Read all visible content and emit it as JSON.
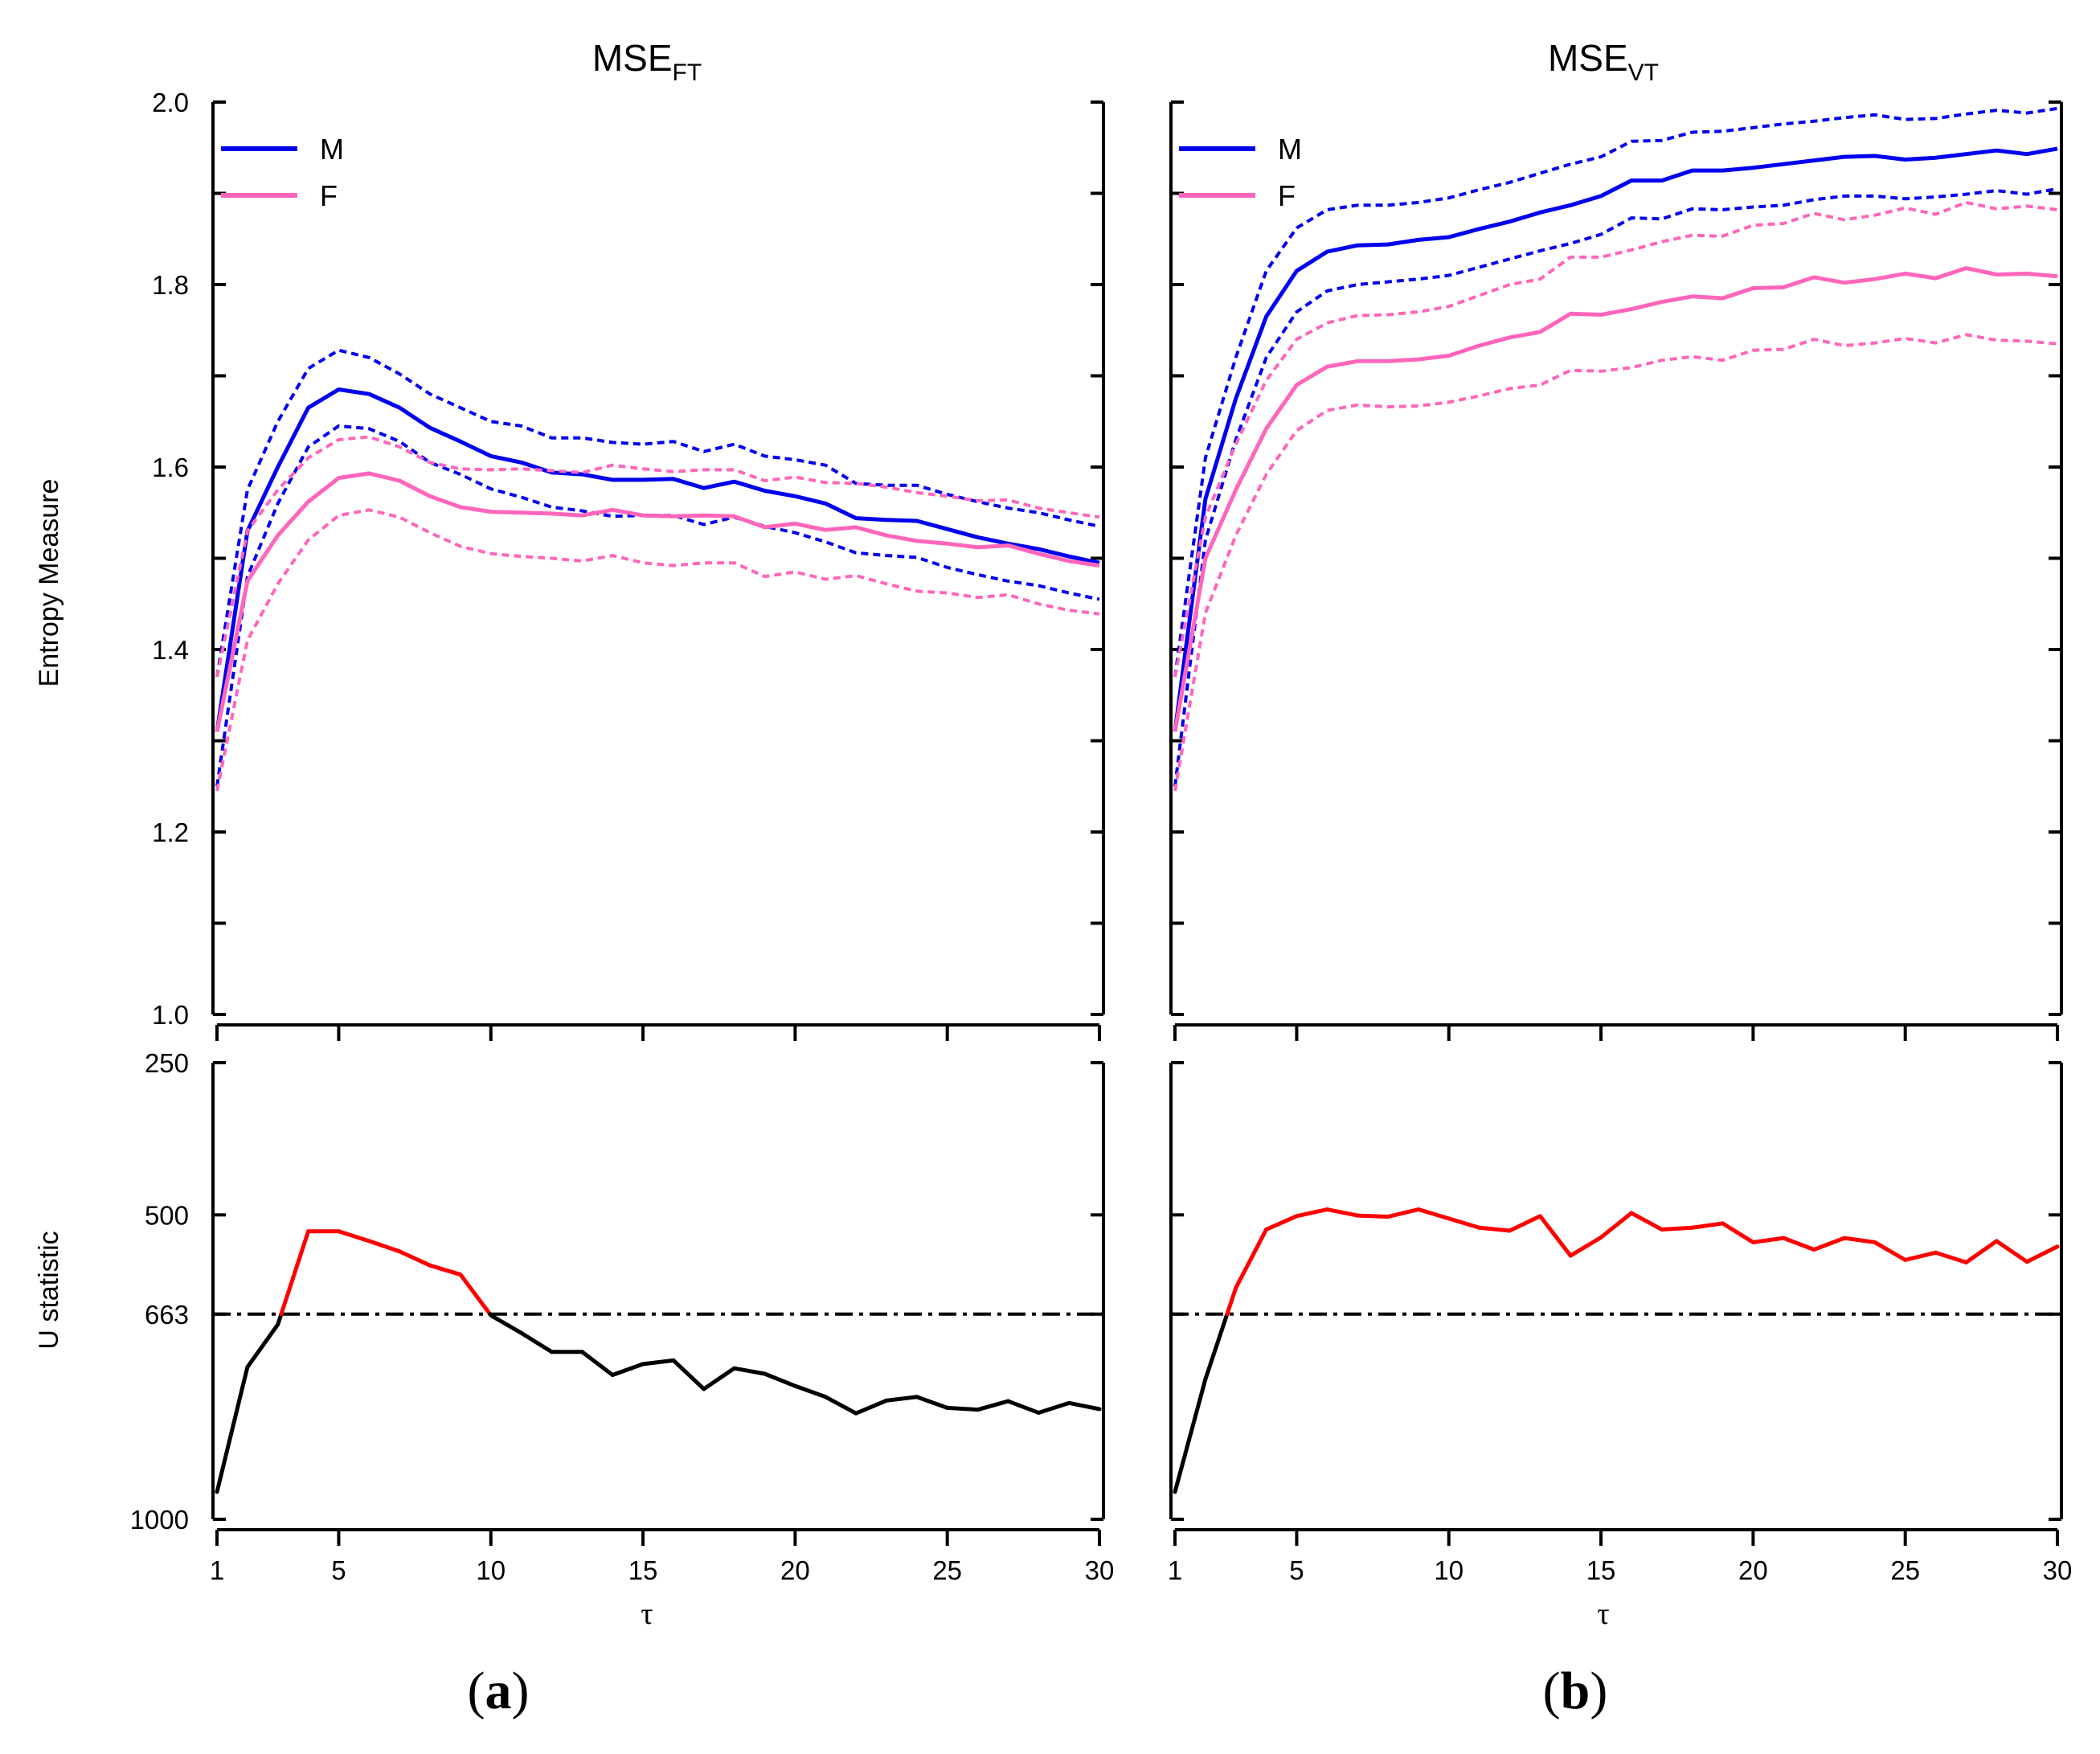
{
  "x_axis": {
    "label": "τ",
    "ticks": [
      1,
      5,
      10,
      15,
      20,
      25,
      30
    ]
  },
  "chart_data": [
    {
      "type": "line",
      "panel": "a",
      "panel_label": "a",
      "title_main": "MSE",
      "title_sub": "FT",
      "ylabel": "Entropy Measure",
      "ylim": [
        1.0,
        2.0
      ],
      "yticks": [
        1.0,
        1.2,
        1.4,
        1.6,
        1.8,
        2.0
      ],
      "legend": [
        {
          "name": "M",
          "color": "#0000ee"
        },
        {
          "name": "F",
          "color": "#ff66bb"
        }
      ],
      "legend_position": "top-left",
      "x": [
        1,
        2,
        3,
        4,
        5,
        6,
        7,
        8,
        9,
        10,
        11,
        12,
        13,
        14,
        15,
        16,
        17,
        18,
        19,
        20,
        21,
        22,
        23,
        24,
        25,
        26,
        27,
        28,
        29,
        30
      ],
      "series": [
        {
          "name": "M",
          "style": "solid",
          "color": "#0000ee",
          "values": [
            1.31,
            1.53,
            1.6,
            1.665,
            1.685,
            1.68,
            1.665,
            1.643,
            1.628,
            1.612,
            1.605,
            1.594,
            1.592,
            1.586,
            1.586,
            1.587,
            1.577,
            1.584,
            1.574,
            1.568,
            1.56,
            1.544,
            1.542,
            1.541,
            1.532,
            1.523,
            1.516,
            1.51,
            1.502,
            1.495
          ]
        },
        {
          "series_of": "M",
          "style": "dashed",
          "color": "#0000ee",
          "values": [
            1.37,
            1.575,
            1.65,
            1.708,
            1.728,
            1.72,
            1.702,
            1.68,
            1.665,
            1.65,
            1.645,
            1.632,
            1.632,
            1.627,
            1.625,
            1.628,
            1.617,
            1.625,
            1.612,
            1.608,
            1.602,
            1.582,
            1.58,
            1.58,
            1.57,
            1.562,
            1.555,
            1.55,
            1.542,
            1.535
          ]
        },
        {
          "series_of": "M",
          "style": "dashed",
          "color": "#0000ee",
          "values": [
            1.25,
            1.48,
            1.56,
            1.622,
            1.645,
            1.642,
            1.628,
            1.605,
            1.592,
            1.576,
            1.567,
            1.556,
            1.552,
            1.546,
            1.547,
            1.547,
            1.537,
            1.545,
            1.535,
            1.528,
            1.518,
            1.506,
            1.503,
            1.501,
            1.49,
            1.482,
            1.475,
            1.47,
            1.462,
            1.455
          ]
        },
        {
          "name": "F",
          "style": "solid",
          "color": "#ff66bb",
          "values": [
            1.31,
            1.475,
            1.525,
            1.562,
            1.588,
            1.593,
            1.585,
            1.568,
            1.556,
            1.551,
            1.55,
            1.549,
            1.547,
            1.553,
            1.547,
            1.546,
            1.547,
            1.546,
            1.534,
            1.538,
            1.531,
            1.534,
            1.525,
            1.519,
            1.516,
            1.512,
            1.514,
            1.505,
            1.497,
            1.492
          ]
        },
        {
          "series_of": "F",
          "style": "dashed",
          "color": "#ff66bb",
          "values": [
            1.37,
            1.53,
            1.575,
            1.61,
            1.63,
            1.633,
            1.622,
            1.605,
            1.598,
            1.597,
            1.598,
            1.596,
            1.594,
            1.602,
            1.598,
            1.595,
            1.597,
            1.597,
            1.585,
            1.589,
            1.583,
            1.582,
            1.578,
            1.572,
            1.568,
            1.563,
            1.564,
            1.555,
            1.55,
            1.545
          ]
        },
        {
          "series_of": "F",
          "style": "dashed",
          "color": "#ff66bb",
          "values": [
            1.245,
            1.41,
            1.472,
            1.52,
            1.547,
            1.553,
            1.545,
            1.528,
            1.513,
            1.505,
            1.502,
            1.5,
            1.497,
            1.503,
            1.495,
            1.492,
            1.495,
            1.495,
            1.48,
            1.485,
            1.477,
            1.481,
            1.472,
            1.464,
            1.462,
            1.457,
            1.46,
            1.45,
            1.443,
            1.439
          ]
        }
      ]
    },
    {
      "type": "line",
      "panel": "a",
      "ylabel": "U statistic",
      "ylim": [
        1000,
        250
      ],
      "yticks": [
        250,
        500,
        663,
        1000
      ],
      "threshold": 663,
      "threshold_style": "dash-dot",
      "significant_color": "#ff0000",
      "nonsignificant_color": "#000000",
      "x": [
        1,
        2,
        3,
        4,
        5,
        6,
        7,
        8,
        9,
        10,
        11,
        12,
        13,
        14,
        15,
        16,
        17,
        18,
        19,
        20,
        21,
        22,
        23,
        24,
        25,
        26,
        27,
        28,
        29,
        30
      ],
      "values": [
        955,
        750,
        680,
        527,
        527,
        543,
        560,
        583,
        598,
        665,
        694,
        725,
        725,
        763,
        745,
        739,
        786,
        752,
        761,
        781,
        799,
        826,
        805,
        799,
        817,
        820,
        806,
        825,
        809,
        819
      ]
    },
    {
      "type": "line",
      "panel": "b",
      "panel_label": "b",
      "title_main": "MSE",
      "title_sub": "VT",
      "ylabel": "",
      "ylim": [
        1.0,
        2.0
      ],
      "yticks": [
        1.0,
        1.2,
        1.4,
        1.6,
        1.8,
        2.0
      ],
      "legend": [
        {
          "name": "M",
          "color": "#0000ee"
        },
        {
          "name": "F",
          "color": "#ff66bb"
        }
      ],
      "legend_position": "top-left",
      "x": [
        1,
        2,
        3,
        4,
        5,
        6,
        7,
        8,
        9,
        10,
        11,
        12,
        13,
        14,
        15,
        16,
        17,
        18,
        19,
        20,
        21,
        22,
        23,
        24,
        25,
        26,
        27,
        28,
        29,
        30
      ],
      "series": [
        {
          "name": "M",
          "style": "solid",
          "color": "#0000ee",
          "values": [
            1.31,
            1.565,
            1.675,
            1.765,
            1.815,
            1.836,
            1.843,
            1.844,
            1.849,
            1.852,
            1.861,
            1.869,
            1.879,
            1.887,
            1.897,
            1.914,
            1.914,
            1.925,
            1.925,
            1.928,
            1.932,
            1.936,
            1.94,
            1.941,
            1.937,
            1.939,
            1.943,
            1.947,
            1.943,
            1.949
          ]
        },
        {
          "series_of": "M",
          "style": "dashed",
          "color": "#0000ee",
          "values": [
            1.37,
            1.61,
            1.72,
            1.815,
            1.862,
            1.882,
            1.887,
            1.887,
            1.89,
            1.895,
            1.904,
            1.912,
            1.922,
            1.932,
            1.94,
            1.957,
            1.958,
            1.967,
            1.968,
            1.972,
            1.976,
            1.979,
            1.983,
            1.986,
            1.981,
            1.982,
            1.987,
            1.991,
            1.988,
            1.993
          ]
        },
        {
          "series_of": "M",
          "style": "dashed",
          "color": "#0000ee",
          "values": [
            1.25,
            1.52,
            1.63,
            1.72,
            1.77,
            1.793,
            1.8,
            1.803,
            1.806,
            1.81,
            1.819,
            1.828,
            1.837,
            1.845,
            1.855,
            1.873,
            1.872,
            1.883,
            1.882,
            1.885,
            1.887,
            1.893,
            1.897,
            1.897,
            1.894,
            1.896,
            1.899,
            1.903,
            1.899,
            1.905
          ]
        },
        {
          "name": "F",
          "style": "solid",
          "color": "#ff66bb",
          "values": [
            1.31,
            1.5,
            1.575,
            1.642,
            1.69,
            1.71,
            1.716,
            1.716,
            1.718,
            1.722,
            1.733,
            1.742,
            1.748,
            1.768,
            1.767,
            1.773,
            1.781,
            1.787,
            1.785,
            1.796,
            1.797,
            1.808,
            1.802,
            1.806,
            1.812,
            1.807,
            1.818,
            1.811,
            1.812,
            1.809
          ]
        },
        {
          "series_of": "F",
          "style": "dashed",
          "color": "#ff66bb",
          "values": [
            1.37,
            1.545,
            1.625,
            1.695,
            1.74,
            1.758,
            1.766,
            1.767,
            1.77,
            1.776,
            1.788,
            1.8,
            1.806,
            1.83,
            1.83,
            1.838,
            1.847,
            1.854,
            1.853,
            1.865,
            1.867,
            1.878,
            1.871,
            1.876,
            1.884,
            1.877,
            1.89,
            1.883,
            1.886,
            1.882
          ]
        },
        {
          "series_of": "F",
          "style": "dashed",
          "color": "#ff66bb",
          "values": [
            1.245,
            1.44,
            1.525,
            1.592,
            1.64,
            1.662,
            1.668,
            1.666,
            1.667,
            1.671,
            1.678,
            1.686,
            1.69,
            1.706,
            1.705,
            1.709,
            1.717,
            1.721,
            1.717,
            1.728,
            1.729,
            1.74,
            1.733,
            1.736,
            1.741,
            1.736,
            1.745,
            1.739,
            1.738,
            1.735
          ]
        }
      ]
    },
    {
      "type": "line",
      "panel": "b",
      "ylabel": "",
      "ylim": [
        1000,
        250
      ],
      "yticks": [
        250,
        500,
        663,
        1000
      ],
      "threshold": 663,
      "threshold_style": "dash-dot",
      "significant_color": "#ff0000",
      "nonsignificant_color": "#000000",
      "x": [
        1,
        2,
        3,
        4,
        5,
        6,
        7,
        8,
        9,
        10,
        11,
        12,
        13,
        14,
        15,
        16,
        17,
        18,
        19,
        20,
        21,
        22,
        23,
        24,
        25,
        26,
        27,
        28,
        29,
        30
      ],
      "values": [
        955,
        770,
        620,
        524,
        502,
        491,
        501,
        503,
        491,
        506,
        521,
        526,
        502,
        567,
        537,
        497,
        524,
        521,
        514,
        545,
        538,
        557,
        538,
        545,
        574,
        562,
        578,
        543,
        577,
        552
      ]
    }
  ]
}
